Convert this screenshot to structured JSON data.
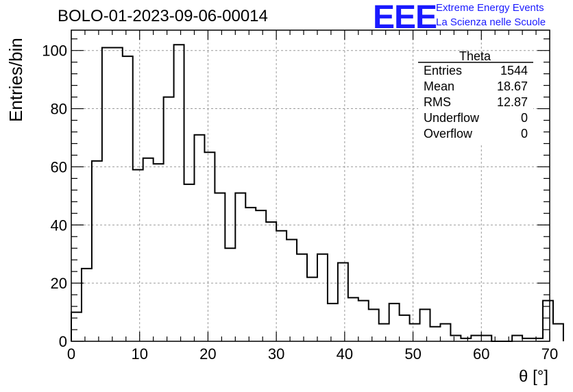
{
  "page": {
    "run_label": "BOLO-01-2023-09-06-00014",
    "logo": {
      "mark": "EEE",
      "line1": "Extreme Energy Events",
      "line2": "La Scienza nelle Scuole",
      "color": "#1a1aff"
    }
  },
  "stats_box": {
    "name": "Theta",
    "rows": [
      {
        "label": "Entries",
        "value": "1544"
      },
      {
        "label": "Mean",
        "value": "18.67"
      },
      {
        "label": "RMS",
        "value": "12.87"
      },
      {
        "label": "Underflow",
        "value": "0"
      },
      {
        "label": "Overflow",
        "value": "0"
      }
    ]
  },
  "chart_data": {
    "type": "histogram",
    "xlabel": "θ [°]",
    "ylabel": "Entries/bin",
    "xlim": [
      0,
      70
    ],
    "ylim": [
      0,
      107
    ],
    "x_ticks": [
      0,
      10,
      20,
      30,
      40,
      50,
      60,
      70
    ],
    "y_ticks": [
      0,
      20,
      40,
      60,
      80,
      100
    ],
    "grid": true,
    "bin_width": 1.5,
    "bin_start": 0,
    "values": [
      10,
      25,
      62,
      101,
      101,
      98,
      59,
      63,
      61,
      84,
      102,
      54,
      71,
      65,
      51,
      32,
      51,
      46,
      45,
      41,
      38,
      35,
      30,
      22,
      30,
      13,
      27,
      15,
      14,
      11,
      6,
      13,
      9,
      6,
      11,
      5,
      6,
      2,
      1,
      2,
      2,
      0,
      0,
      2,
      1,
      1,
      14,
      6
    ],
    "line_color": "#000000"
  }
}
